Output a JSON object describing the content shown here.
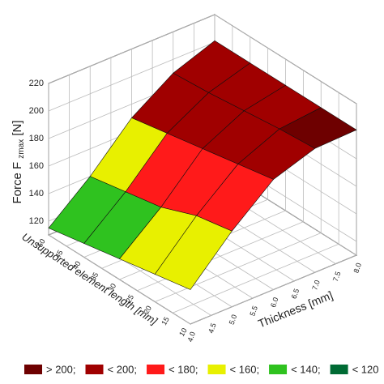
{
  "chart_data": {
    "type": "surface3d",
    "zlabel": "Force F",
    "zlabel_sub": "zmax",
    "zlabel_unit": "[N]",
    "ylabel": "Unsupported element length [mm]",
    "xlabel": "Thickness [mm]",
    "x": [
      4,
      5,
      6,
      7,
      8
    ],
    "y": [
      10,
      20,
      30,
      40,
      50
    ],
    "z": [
      [
        135,
        165,
        190,
        200,
        201
      ],
      [
        130,
        160,
        185,
        198,
        201
      ],
      [
        125,
        150,
        180,
        195,
        201
      ],
      [
        120,
        145,
        175,
        192,
        201
      ],
      [
        115,
        140,
        170,
        190,
        201
      ]
    ],
    "xlim": [
      4,
      8
    ],
    "ylim": [
      10,
      50
    ],
    "zlim": [
      110,
      220
    ],
    "xticks": [
      {
        "value": 4,
        "label": "4.0"
      },
      4.5,
      {
        "value": 5,
        "label": "5.0"
      },
      5.5,
      {
        "value": 6,
        "label": "6.0"
      },
      6.5,
      {
        "value": 7,
        "label": "7.0"
      },
      7.5,
      {
        "value": 8,
        "label": "8.0"
      }
    ],
    "yticks": [
      10,
      15,
      20,
      25,
      30,
      35,
      40,
      45,
      50
    ],
    "zticks": [
      120,
      140,
      160,
      180,
      200,
      220
    ],
    "grid": true,
    "legend": [
      {
        "label": "> 200;",
        "value": 200,
        "color": "#6e0000"
      },
      {
        "label": "< 200;",
        "value": 200,
        "color": "#a00000"
      },
      {
        "label": "< 180;",
        "value": 180,
        "color": "#ff1a1a"
      },
      {
        "label": "< 160;",
        "value": 160,
        "color": "#e8f000"
      },
      {
        "label": "< 140;",
        "value": 140,
        "color": "#2fc21f"
      },
      {
        "label": "< 120",
        "value": 120,
        "color": "#006b34"
      }
    ]
  }
}
